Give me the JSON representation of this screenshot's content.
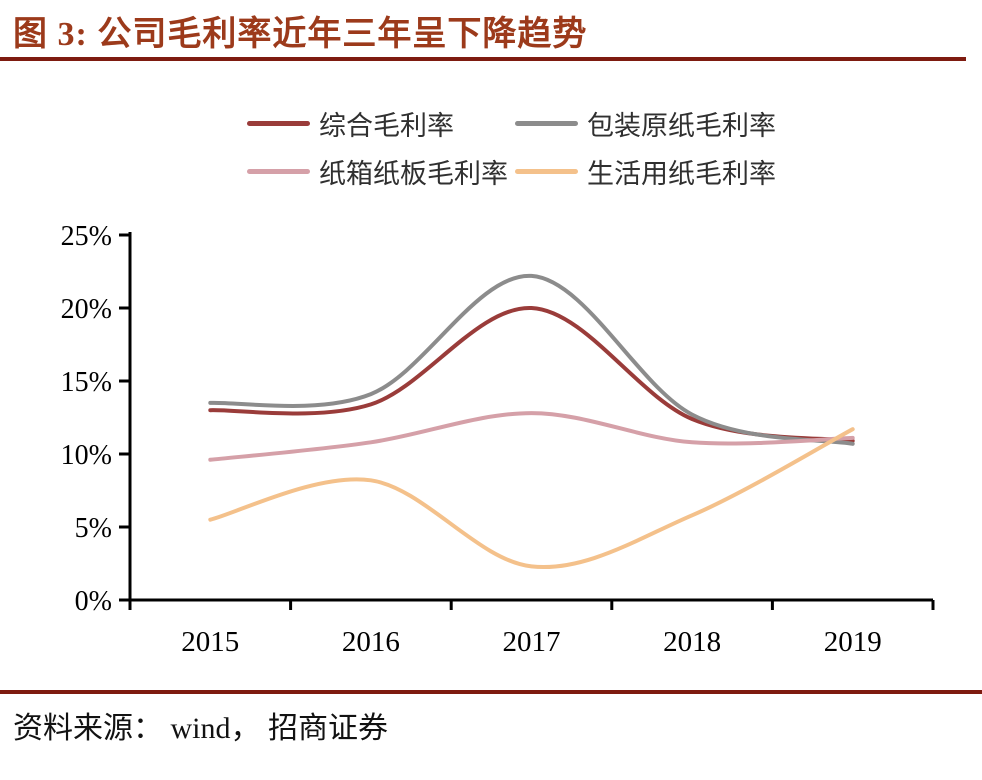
{
  "figure": {
    "title": "图 3: 公司毛利率近年三年呈下降趋势",
    "source": "资料来源： wind， 招商证券"
  },
  "colors": {
    "title_text": "#9C3A1B",
    "rule": "#7E1B10",
    "axis": "#000000",
    "tick_label": "#000000"
  },
  "chart_data": {
    "type": "line",
    "smoothing": "spline",
    "grid": false,
    "legend_position": "top",
    "categories": [
      "2015",
      "2016",
      "2017",
      "2018",
      "2019"
    ],
    "y_tick_labels": [
      "0%",
      "5%",
      "10%",
      "15%",
      "20%",
      "25%"
    ],
    "y_ticks": [
      0,
      5,
      10,
      15,
      20,
      25
    ],
    "ylim": [
      0,
      25
    ],
    "y_unit": "%",
    "series": [
      {
        "name": "综合毛利率",
        "color": "#9A3C3A",
        "values": [
          13.0,
          13.4,
          20.0,
          12.4,
          10.9
        ]
      },
      {
        "name": "包装原纸毛利率",
        "color": "#8C8C8C",
        "values": [
          13.5,
          14.1,
          22.2,
          12.7,
          10.7
        ]
      },
      {
        "name": "纸箱纸板毛利率",
        "color": "#D5A0A8",
        "values": [
          9.6,
          10.8,
          12.8,
          10.8,
          11.1
        ]
      },
      {
        "name": "生活用纸毛利率",
        "color": "#F4C18B",
        "values": [
          5.5,
          8.2,
          2.3,
          5.8,
          11.7
        ]
      }
    ]
  }
}
